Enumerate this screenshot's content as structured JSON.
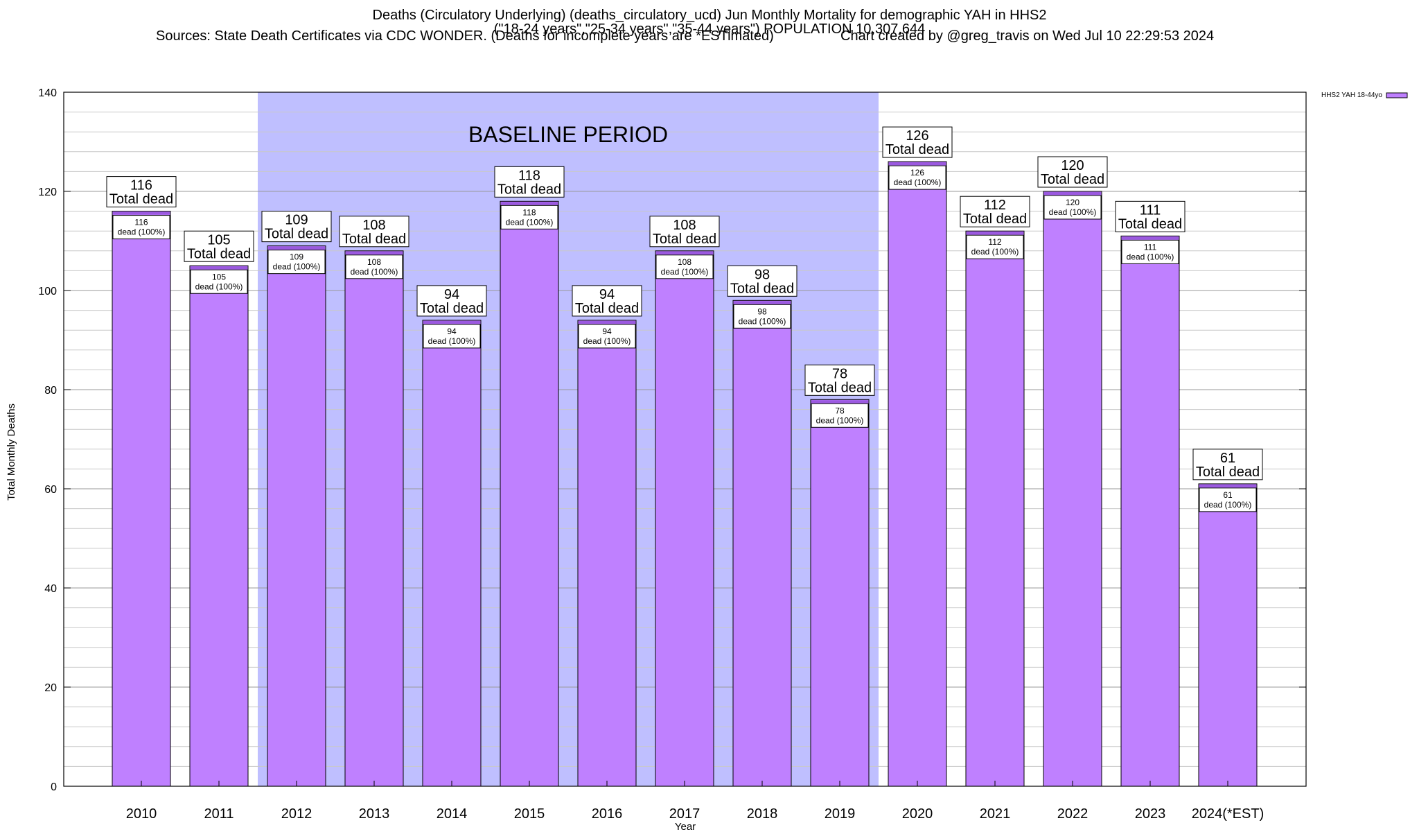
{
  "chart_data": {
    "type": "bar",
    "title_lines": [
      "Deaths (Circulatory Underlying) (deaths_circulatory_ucd) Jun Monthly Mortality for demographic YAH in HHS2",
      "(\"18-24 years\",\"25-34 years\",\"35-44 years\") POPULATION 10,307,644"
    ],
    "sources": "Sources: State Death Certificates via CDC WONDER. (Deaths for incomplete years are *ESTimated)",
    "credit": "Chart created by @greg_travis on Wed Jul 10 22:29:53 2024",
    "xlabel": "Year",
    "ylabel": "Total Monthly Deaths",
    "ylim": [
      0,
      140
    ],
    "yticks": [
      0,
      20,
      40,
      60,
      80,
      100,
      120,
      140
    ],
    "y_minor_step": 4,
    "grid": true,
    "categories": [
      "2010",
      "2011",
      "2012",
      "2013",
      "2014",
      "2015",
      "2016",
      "2017",
      "2018",
      "2019",
      "2020",
      "2021",
      "2022",
      "2023",
      "2024(*EST)"
    ],
    "series": [
      {
        "name": "HHS2 YAH 18-44yo",
        "color": "#bf80ff",
        "values": [
          116,
          105,
          109,
          108,
          94,
          118,
          94,
          108,
          98,
          78,
          126,
          112,
          120,
          111,
          61
        ]
      }
    ],
    "total_label_suffix": "Total dead",
    "inner_label_suffix": "dead (100%)",
    "legend_position": "top-right",
    "baseline": {
      "label": "BASELINE PERIOD",
      "from_category": "2012",
      "to_category": "2019",
      "color": "#bfbfff"
    },
    "colors": {
      "bar": "#bf80ff",
      "bar_top": "#9b59e0",
      "baseline": "#bfbfff",
      "grid": "#c8c8c8"
    }
  }
}
